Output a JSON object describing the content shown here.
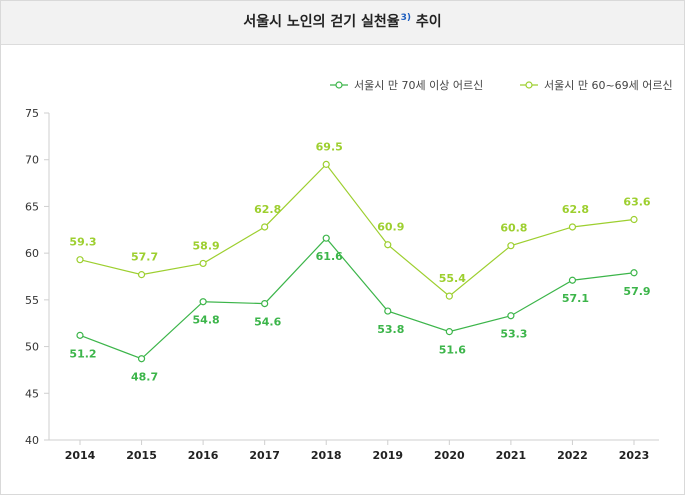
{
  "title_main": "서울시 노인의 걷기 실천율",
  "title_sup": "3)",
  "title_tail": " 추이",
  "chart_data": {
    "type": "line",
    "title": "서울시 노인의 걷기 실천율3) 추이",
    "categories": [
      "2014",
      "2015",
      "2016",
      "2017",
      "2018",
      "2019",
      "2020",
      "2021",
      "2022",
      "2023"
    ],
    "ylim": [
      40,
      75
    ],
    "yticks": [
      40,
      45,
      50,
      55,
      60,
      65,
      70,
      75
    ],
    "grid": false,
    "legend_position": "top-right",
    "series": [
      {
        "name": "서울시 만 70세 이상 어르신",
        "color": "#3cb54a",
        "values": [
          51.2,
          48.7,
          54.8,
          54.6,
          61.6,
          53.8,
          51.6,
          53.3,
          57.1,
          57.9
        ],
        "label_pos": [
          "below",
          "below",
          "below",
          "below",
          "below",
          "below",
          "below",
          "below",
          "below",
          "below"
        ]
      },
      {
        "name": "서울시 만 60~69세 어르신",
        "color": "#9dcf2f",
        "values": [
          59.3,
          57.7,
          58.9,
          62.8,
          69.5,
          60.9,
          55.4,
          60.8,
          62.8,
          63.6
        ],
        "label_pos": [
          "above",
          "above",
          "above",
          "above",
          "above",
          "above",
          "above",
          "above",
          "above",
          "above"
        ]
      }
    ]
  }
}
